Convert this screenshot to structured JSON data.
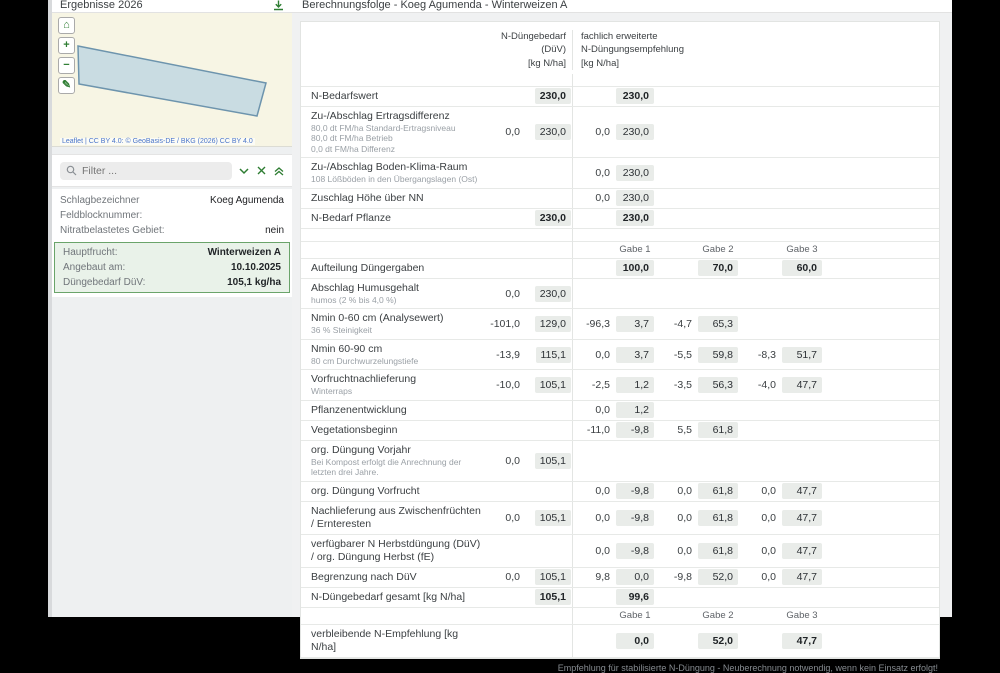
{
  "sidebar": {
    "title": "Ergebnisse 2026",
    "map": {
      "controls": [
        {
          "name": "home",
          "glyph": "⌂"
        },
        {
          "name": "zoom-in",
          "glyph": "+"
        },
        {
          "name": "zoom-out",
          "glyph": "−"
        },
        {
          "name": "edit",
          "glyph": "✎"
        }
      ],
      "attribution": "Leaflet | CC BY 4.0: © GeoBasis-DE / BKG (2026) CC BY 4.0",
      "polygon_fill": "#bdd5e2",
      "polygon_stroke": "#6d94ad"
    },
    "filter": {
      "placeholder": "Filter ..."
    },
    "info_rows": [
      {
        "label": "Schlagbezeichner",
        "value": "Koeg Agumenda"
      },
      {
        "label": "Feldblocknummer:",
        "value": ""
      },
      {
        "label": "Nitratbelastetes Gebiet:",
        "value": "nein"
      }
    ],
    "highlight_rows": [
      {
        "label": "Hauptfrucht:",
        "value": "Winterweizen A"
      },
      {
        "label": "Angebaut am:",
        "value": "10.10.2025"
      },
      {
        "label": "Düngebedarf DüV:",
        "value": "105,1 kg/ha"
      }
    ]
  },
  "main": {
    "title": "Berechnungsfolge - Koeg Agumenda - Winterweizen A",
    "footer_note": "Empfehlung für stabilisierte N-Düngung - Neuberechnung notwendig, wenn kein Einsatz erfolgt!"
  },
  "table": {
    "header": {
      "duv": [
        "N-Düngebedarf",
        "(DüV)",
        "[kg N/ha]"
      ],
      "fe": [
        "fachlich erweiterte",
        "N-Düngungsempfehlung",
        "[kg N/ha]"
      ]
    },
    "gabe_labels": [
      "Gabe 1",
      "Gabe 2",
      "Gabe 3"
    ],
    "accent_color": "#2e7d32",
    "value_box_color": "#e9ece9",
    "rows": [
      {
        "type": "spacer"
      },
      {
        "label": "N-Bedarfswert",
        "subs": [],
        "bold": true,
        "cells": [
          "",
          "230,0",
          "",
          "230,0",
          "",
          "",
          "",
          ""
        ]
      },
      {
        "label": "Zu-/Abschlag Ertragsdifferenz",
        "subs": [
          "80,0 dt FM/ha Standard-Ertragsniveau",
          "80,0 dt FM/ha Betrieb",
          "0,0 dt FM/ha Differenz"
        ],
        "cells": [
          "0,0",
          "230,0",
          "0,0",
          "230,0",
          "",
          "",
          "",
          ""
        ]
      },
      {
        "label": "Zu-/Abschlag Boden-Klima-Raum",
        "subs": [
          "108 Lößböden in den Übergangslagen (Ost)"
        ],
        "cells": [
          "",
          "",
          "0,0",
          "230,0",
          "",
          "",
          "",
          ""
        ]
      },
      {
        "label": "Zuschlag Höhe über NN",
        "subs": [],
        "cells": [
          "",
          "",
          "0,0",
          "230,0",
          "",
          "",
          "",
          ""
        ]
      },
      {
        "label": "N-Bedarf Pflanze",
        "subs": [],
        "bold": true,
        "cells": [
          "",
          "230,0",
          "",
          "230,0",
          "",
          "",
          "",
          ""
        ]
      },
      {
        "type": "spacer"
      },
      {
        "type": "gabe"
      },
      {
        "label": "Aufteilung Düngergaben",
        "subs": [],
        "bold": true,
        "cells": [
          "",
          "",
          "",
          "100,0",
          "",
          "70,0",
          "",
          "60,0"
        ]
      },
      {
        "label": "Abschlag Humusgehalt",
        "subs": [
          "humos (2 % bis 4,0 %)"
        ],
        "cells": [
          "0,0",
          "230,0",
          "",
          "",
          "",
          "",
          "",
          ""
        ]
      },
      {
        "label": "Nmin 0-60 cm (Analysewert)",
        "subs": [
          "36 % Steinigkeit"
        ],
        "cells": [
          "-101,0",
          "129,0",
          "-96,3",
          "3,7",
          "-4,7",
          "65,3",
          "",
          ""
        ]
      },
      {
        "label": "Nmin 60-90 cm",
        "subs": [
          "80 cm Durchwurzelungstiefe"
        ],
        "cells": [
          "-13,9",
          "115,1",
          "0,0",
          "3,7",
          "-5,5",
          "59,8",
          "-8,3",
          "51,7"
        ]
      },
      {
        "label": "Vorfruchtnachlieferung",
        "subs": [
          "Winterraps"
        ],
        "cells": [
          "-10,0",
          "105,1",
          "-2,5",
          "1,2",
          "-3,5",
          "56,3",
          "-4,0",
          "47,7"
        ]
      },
      {
        "label": "Pflanzenentwicklung",
        "subs": [],
        "cells": [
          "",
          "",
          "0,0",
          "1,2",
          "",
          "",
          "",
          ""
        ]
      },
      {
        "label": "Vegetationsbeginn",
        "subs": [],
        "cells": [
          "",
          "",
          "-11,0",
          "-9,8",
          "5,5",
          "61,8",
          "",
          ""
        ]
      },
      {
        "label": "org. Düngung Vorjahr",
        "subs": [
          "Bei Kompost erfolgt die Anrechnung der letzten drei Jahre."
        ],
        "cells": [
          "0,0",
          "105,1",
          "",
          "",
          "",
          "",
          "",
          ""
        ]
      },
      {
        "label": "org. Düngung Vorfrucht",
        "subs": [],
        "cells": [
          "",
          "",
          "0,0",
          "-9,8",
          "0,0",
          "61,8",
          "0,0",
          "47,7"
        ]
      },
      {
        "label": "Nachlieferung aus Zwischenfrüchten / Ernteresten",
        "subs": [],
        "cells": [
          "0,0",
          "105,1",
          "0,0",
          "-9,8",
          "0,0",
          "61,8",
          "0,0",
          "47,7"
        ]
      },
      {
        "label": "verfügbarer N Herbstdüngung (DüV) / org. Düngung Herbst (fE)",
        "subs": [],
        "cells": [
          "",
          "",
          "0,0",
          "-9,8",
          "0,0",
          "61,8",
          "0,0",
          "47,7"
        ]
      },
      {
        "label": "Begrenzung nach DüV",
        "subs": [],
        "cells": [
          "0,0",
          "105,1",
          "9,8",
          "0,0",
          "-9,8",
          "52,0",
          "0,0",
          "47,7"
        ]
      },
      {
        "label": "N-Düngebedarf gesamt [kg N/ha]",
        "subs": [],
        "bold": true,
        "cells": [
          "",
          "105,1",
          "",
          "99,6",
          "",
          "",
          "",
          ""
        ]
      },
      {
        "type": "gabe"
      },
      {
        "label": "verbleibende N-Empfehlung [kg N/ha]",
        "subs": [],
        "bold": true,
        "cells": [
          "",
          "",
          "",
          "0,0",
          "",
          "52,0",
          "",
          "47,7"
        ]
      }
    ]
  }
}
